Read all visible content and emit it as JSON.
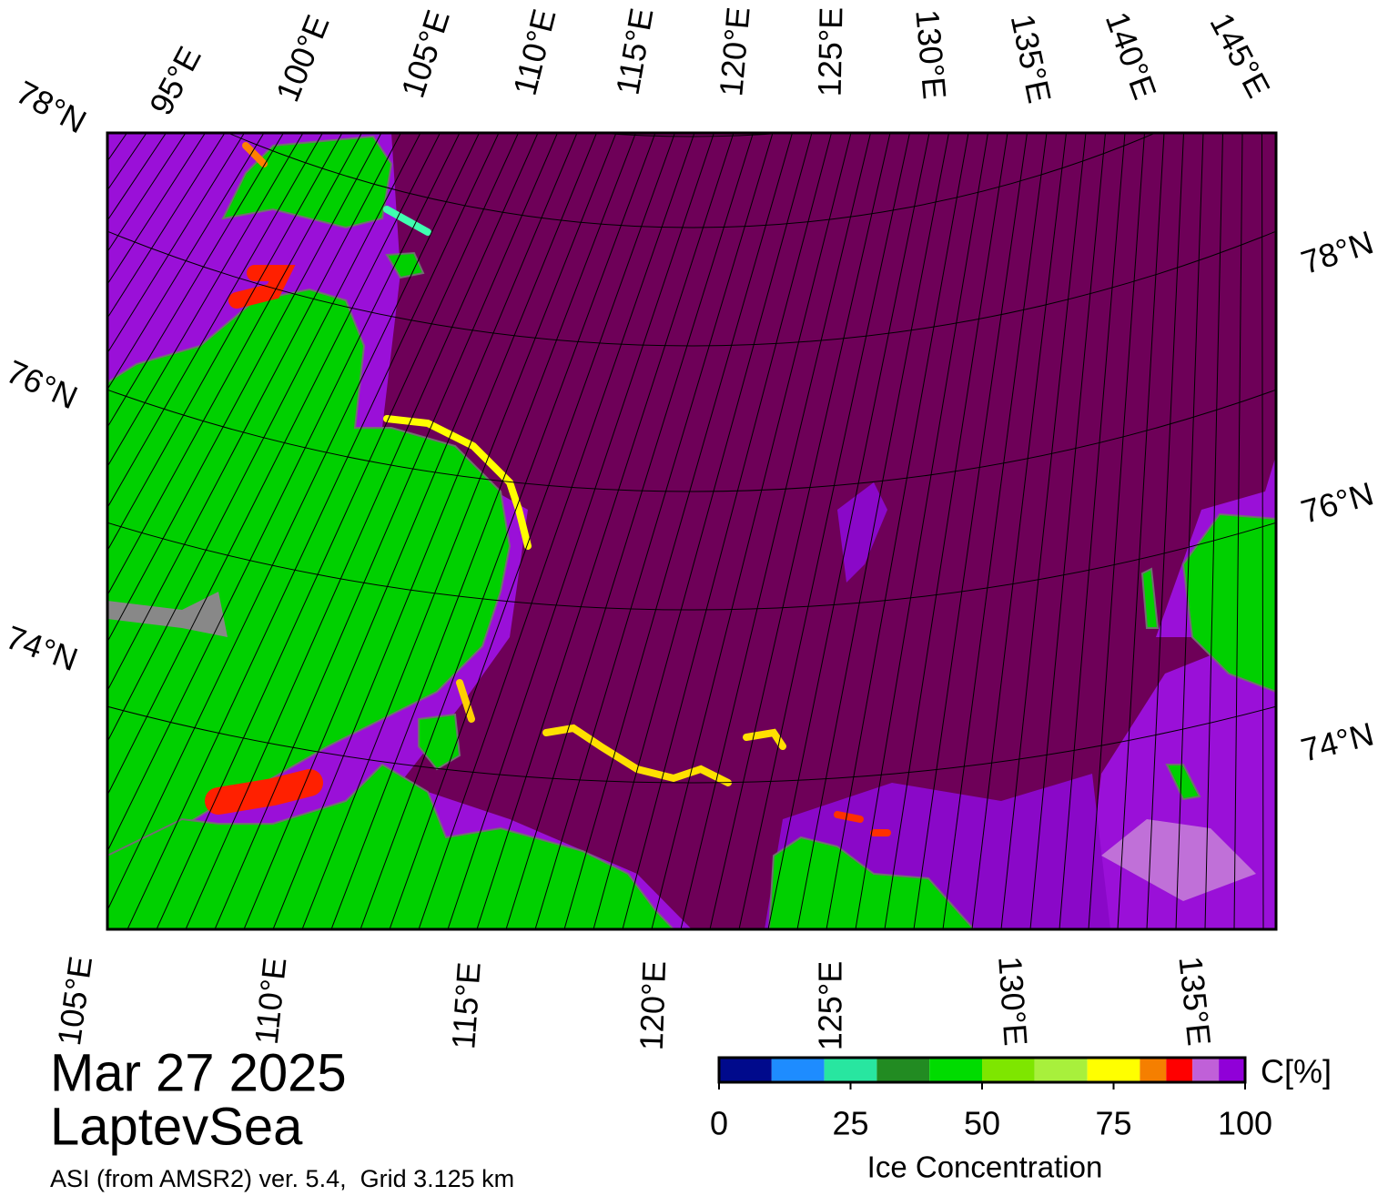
{
  "map": {
    "lon_labels_top": [
      "95°E",
      "100°E",
      "105°E",
      "110°E",
      "115°E",
      "120°E",
      "125°E",
      "130°E",
      "135°E",
      "140°E",
      "145°E"
    ],
    "lat_labels_left": [
      "78°N",
      "76°N",
      "74°N"
    ],
    "lat_labels_right": [
      "78°N",
      "76°N",
      "74°N"
    ],
    "lon_labels_bottom": [
      "105°E",
      "110°E",
      "115°E",
      "120°E",
      "125°E",
      "130°E",
      "135°E"
    ]
  },
  "date": "Mar 27 2025",
  "region": "LaptevSea",
  "source": "ASI (from AMSR2) ver. 5.4,  Grid 3.125 km",
  "colorbar": {
    "bounds": [
      0,
      10,
      20,
      30,
      40,
      50,
      60,
      70,
      80,
      85,
      90,
      95,
      100
    ],
    "colors": [
      "#000a8c",
      "#1e8cff",
      "#28e6a0",
      "#228b22",
      "#00dc00",
      "#7ee600",
      "#a8f03c",
      "#ffff00",
      "#f57f00",
      "#ff0000",
      "#c060d8",
      "#9000d8"
    ],
    "lim": [
      0,
      100
    ],
    "ticks": [
      0,
      25,
      50,
      75,
      100
    ],
    "unit": "C[%]",
    "label": "Ice Concentration"
  }
}
